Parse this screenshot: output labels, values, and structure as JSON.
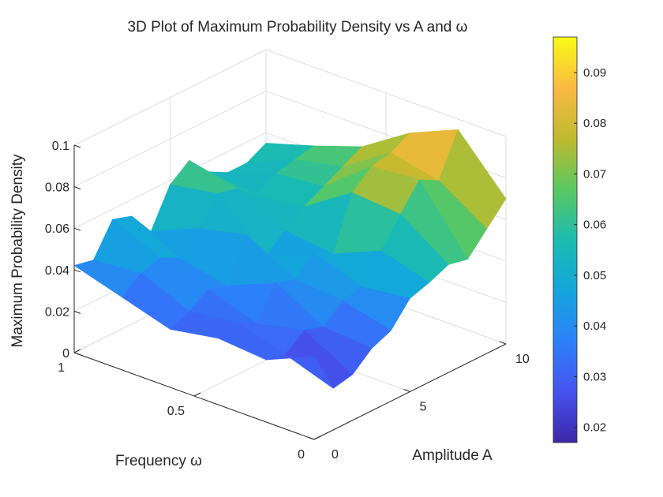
{
  "chart_data": {
    "type": "surface",
    "title": "3D Plot of Maximum Probability Density vs A and ω",
    "xlabel": "Amplitude A",
    "ylabel": "Frequency ω",
    "zlabel": "Maximum Probability Density",
    "x_ticks": [
      "0",
      "5",
      "10"
    ],
    "y_ticks": [
      "0",
      "0.5",
      "1"
    ],
    "z_ticks": [
      "0",
      "0.02",
      "0.04",
      "0.06",
      "0.08",
      "0.1"
    ],
    "xlim": [
      0,
      10
    ],
    "ylim": [
      0,
      1
    ],
    "zlim": [
      0,
      0.1
    ],
    "colorbar": {
      "ticks": [
        "0.02",
        "0.03",
        "0.04",
        "0.05",
        "0.06",
        "0.07",
        "0.08",
        "0.09"
      ],
      "range": [
        0.017,
        0.097
      ],
      "colormap": "parula"
    },
    "grid": true,
    "A": [
      0,
      1,
      2,
      3,
      4,
      5,
      6,
      7,
      8,
      9,
      10
    ],
    "omega": [
      0,
      0.2,
      0.4,
      0.6,
      0.8,
      1.0
    ],
    "z": [
      [
        0.04,
        0.02,
        0.022,
        0.03,
        0.034,
        0.045,
        0.048,
        0.052,
        0.05,
        0.06,
        0.07
      ],
      [
        0.03,
        0.028,
        0.035,
        0.032,
        0.04,
        0.042,
        0.055,
        0.068,
        0.08,
        0.075,
        0.095
      ],
      [
        0.032,
        0.035,
        0.03,
        0.045,
        0.042,
        0.05,
        0.045,
        0.07,
        0.078,
        0.08,
        0.085
      ],
      [
        0.028,
        0.032,
        0.038,
        0.035,
        0.055,
        0.04,
        0.048,
        0.055,
        0.06,
        0.065,
        0.07
      ],
      [
        0.035,
        0.042,
        0.045,
        0.04,
        0.05,
        0.062,
        0.06,
        0.052,
        0.058,
        0.06,
        0.062
      ],
      [
        0.042,
        0.04,
        0.055,
        0.052,
        0.04,
        0.058,
        0.065,
        0.055,
        0.05,
        0.05,
        0.055
      ]
    ]
  }
}
